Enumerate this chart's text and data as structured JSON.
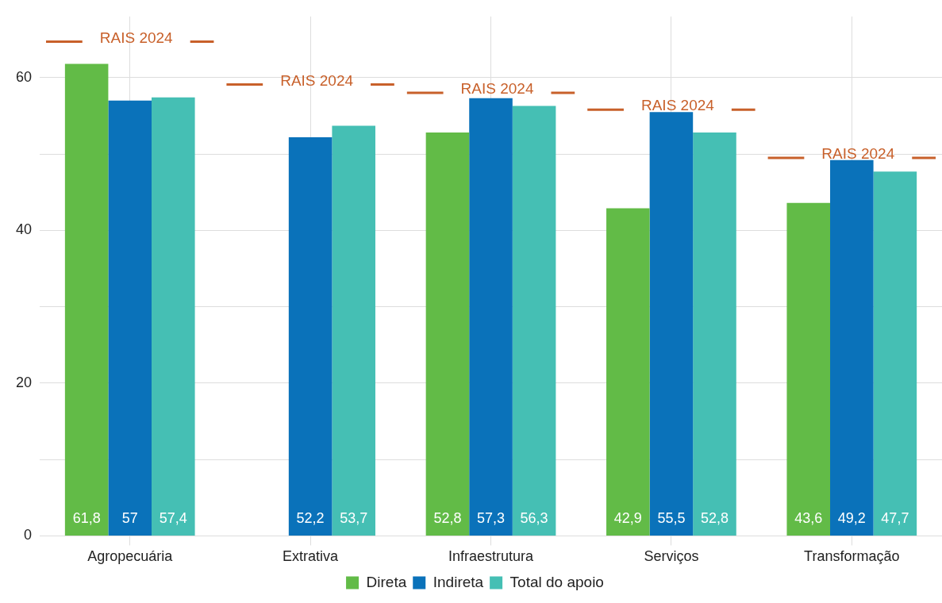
{
  "chart_data": {
    "type": "bar",
    "categories": [
      "Agropecuária",
      "Extrativa",
      "Infraestrutura",
      "Serviços",
      "Transformação"
    ],
    "series": [
      {
        "name": "Direta",
        "color": "#62bb47",
        "values": [
          61.8,
          null,
          52.8,
          42.9,
          43.6
        ],
        "value_labels": [
          "61,8",
          null,
          "52,8",
          "42,9",
          "43,6"
        ]
      },
      {
        "name": "Indireta",
        "color": "#0a72ba",
        "values": [
          57,
          52.2,
          57.3,
          55.5,
          49.2
        ],
        "value_labels": [
          "57",
          "52,2",
          "57,3",
          "55,5",
          "49,2"
        ]
      },
      {
        "name": "Total do apoio",
        "color": "#45bfb4",
        "values": [
          57.4,
          53.7,
          56.3,
          52.8,
          47.7
        ],
        "value_labels": [
          "57,4",
          "53,7",
          "56,3",
          "52,8",
          "47,7"
        ]
      }
    ],
    "ref_lines": [
      {
        "axis": "y",
        "value": 64.7,
        "label": "RAIS 2024",
        "color": "#c8602a"
      },
      {
        "axis": "y",
        "value": 59.1,
        "label": "RAIS 2024",
        "color": "#c8602a"
      },
      {
        "axis": "y",
        "value": 58,
        "label": "RAIS 2024",
        "color": "#c8602a"
      },
      {
        "axis": "y",
        "value": 55.8,
        "label": "RAIS 2024",
        "color": "#c8602a"
      },
      {
        "axis": "y",
        "value": 49.5,
        "label": "RAIS 2024",
        "color": "#c8602a"
      }
    ],
    "ylim": [
      0,
      68
    ],
    "yticks": [
      0,
      {
        "value": 10,
        "label": null
      },
      20,
      {
        "value": 30,
        "label": null
      },
      40,
      {
        "value": 50,
        "label": null
      },
      60
    ],
    "grid": true,
    "legend": "bottom"
  }
}
